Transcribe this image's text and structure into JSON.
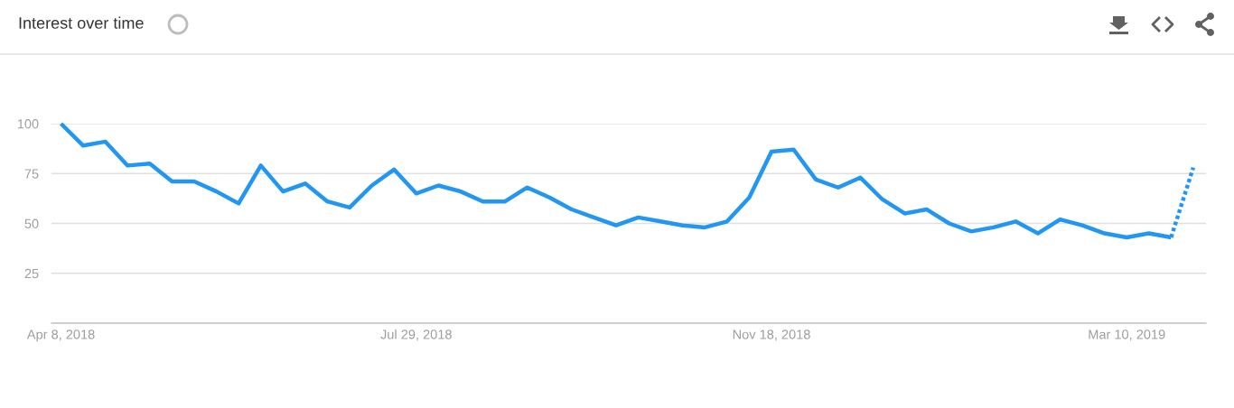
{
  "chart_data": {
    "type": "line",
    "title": "Interest over time",
    "xlim": [
      "2018-04-05",
      "2019-04-04"
    ],
    "xticks": [
      {
        "value": "2018-04-08",
        "label": "Apr 8, 2018"
      },
      {
        "value": "2018-07-29",
        "label": "Jul 29, 2018"
      },
      {
        "value": "2018-11-18",
        "label": "Nov 18, 2018"
      },
      {
        "value": "2019-03-10",
        "label": "Mar 10, 2019"
      }
    ],
    "ylim": [
      0,
      100
    ],
    "yticks": [
      25,
      50,
      75,
      100
    ],
    "grid": "y",
    "marker": "none",
    "series": [
      {
        "color": "#2196f3",
        "line_style": "solid",
        "x": [
          "2018-04-08",
          "2018-04-15",
          "2018-04-22",
          "2018-04-29",
          "2018-05-06",
          "2018-05-13",
          "2018-05-20",
          "2018-05-27",
          "2018-06-03",
          "2018-06-10",
          "2018-06-17",
          "2018-06-24",
          "2018-07-01",
          "2018-07-08",
          "2018-07-15",
          "2018-07-22",
          "2018-07-29",
          "2018-08-05",
          "2018-08-12",
          "2018-08-19",
          "2018-08-26",
          "2018-09-02",
          "2018-09-09",
          "2018-09-16",
          "2018-09-23",
          "2018-09-30",
          "2018-10-07",
          "2018-10-14",
          "2018-10-21",
          "2018-10-28",
          "2018-11-04",
          "2018-11-11",
          "2018-11-18",
          "2018-11-25",
          "2018-12-02",
          "2018-12-09",
          "2018-12-16",
          "2018-12-23",
          "2018-12-30",
          "2019-01-06",
          "2019-01-13",
          "2019-01-20",
          "2019-01-27",
          "2019-02-03",
          "2019-02-10",
          "2019-02-17",
          "2019-02-24",
          "2019-03-03",
          "2019-03-10",
          "2019-03-17",
          "2019-03-24"
        ],
        "values": [
          100,
          89,
          91,
          79,
          80,
          71,
          71,
          66,
          60,
          79,
          66,
          70,
          61,
          58,
          69,
          77,
          65,
          69,
          66,
          61,
          61,
          68,
          63,
          57,
          53,
          49,
          53,
          51,
          49,
          48,
          51,
          63,
          86,
          87,
          72,
          68,
          73,
          62,
          55,
          57,
          50,
          46,
          48,
          51,
          45,
          52,
          49,
          45,
          43,
          45,
          43
        ]
      },
      {
        "color": "#2196f3",
        "line_style": "dotted",
        "x": [
          "2019-03-24",
          "2019-03-31"
        ],
        "values": [
          43,
          78
        ]
      }
    ]
  }
}
